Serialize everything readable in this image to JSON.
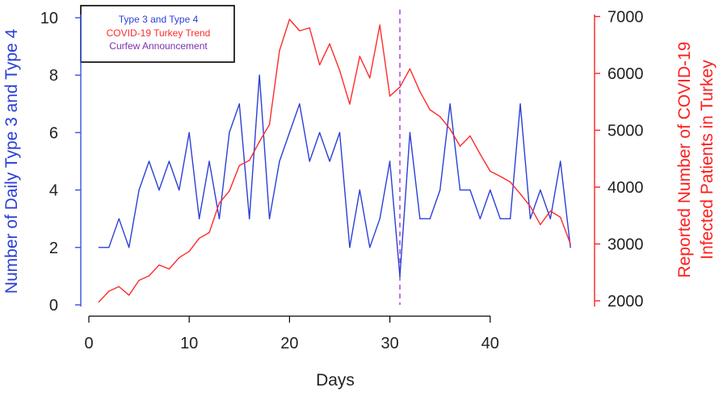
{
  "chart_data": {
    "type": "line",
    "title": "",
    "xlabel": "Days",
    "ylabel_left": "Number of Daily Type 3 and Type 4",
    "ylabel_right_line1": "Reported Number of COVID-19",
    "ylabel_right_line2": "Infected Patients in Turkey",
    "xlim": [
      0,
      49
    ],
    "ylim_left": [
      0,
      10
    ],
    "ylim_right": [
      2000,
      7000
    ],
    "x_ticks": [
      "0",
      "10",
      "20",
      "30",
      "40"
    ],
    "left_ticks": [
      "0",
      "2",
      "4",
      "6",
      "8",
      "10"
    ],
    "right_ticks": [
      "2000",
      "3000",
      "4000",
      "5000",
      "6000",
      "7000"
    ],
    "legend": [
      {
        "label": "Type 3 and Type 4",
        "color": "#2b3fd6"
      },
      {
        "label": "COVID-19 Turkey Trend",
        "color": "#ff2a2a"
      },
      {
        "label": "Curfew Announcement",
        "color": "#7b2fb0"
      }
    ],
    "curfew_day": 31,
    "series": [
      {
        "name": "Type 3 and Type 4",
        "axis": "left",
        "color": "#2b3fd6",
        "x": [
          1,
          2,
          3,
          4,
          5,
          6,
          7,
          8,
          9,
          10,
          11,
          12,
          13,
          14,
          15,
          16,
          17,
          18,
          19,
          20,
          21,
          22,
          23,
          24,
          25,
          26,
          27,
          28,
          29,
          30,
          31,
          32,
          33,
          34,
          35,
          36,
          37,
          38,
          39,
          40,
          41,
          42,
          43,
          44,
          45,
          46,
          47,
          48
        ],
        "values": [
          2,
          2,
          3,
          2,
          4,
          5,
          4,
          5,
          4,
          6,
          3,
          5,
          3,
          6,
          7,
          3,
          8,
          3,
          5,
          6,
          7,
          5,
          6,
          5,
          6,
          2,
          4,
          2,
          3,
          5,
          1,
          6,
          3,
          3,
          4,
          7,
          4,
          4,
          3,
          4,
          3,
          3,
          7,
          3,
          4,
          3,
          5,
          2
        ]
      },
      {
        "name": "COVID-19 Turkey Trend",
        "axis": "right",
        "color": "#ff2a2a",
        "x": [
          1,
          2,
          3,
          4,
          5,
          6,
          7,
          8,
          9,
          10,
          11,
          12,
          13,
          14,
          15,
          16,
          17,
          18,
          19,
          20,
          21,
          22,
          23,
          24,
          25,
          26,
          27,
          28,
          29,
          30,
          31,
          32,
          33,
          34,
          35,
          36,
          37,
          38,
          39,
          40,
          41,
          42,
          43,
          44,
          45,
          46,
          47,
          48
        ],
        "values": [
          1980,
          2170,
          2250,
          2100,
          2360,
          2440,
          2630,
          2560,
          2760,
          2870,
          3100,
          3200,
          3720,
          3930,
          4380,
          4470,
          4800,
          5100,
          6400,
          6950,
          6750,
          6800,
          6150,
          6520,
          6050,
          5460,
          6300,
          5920,
          6850,
          5600,
          5760,
          6080,
          5680,
          5360,
          5240,
          5020,
          4720,
          4900,
          4580,
          4280,
          4190,
          4090,
          3880,
          3660,
          3340,
          3580,
          3470,
          3000
        ]
      }
    ]
  }
}
